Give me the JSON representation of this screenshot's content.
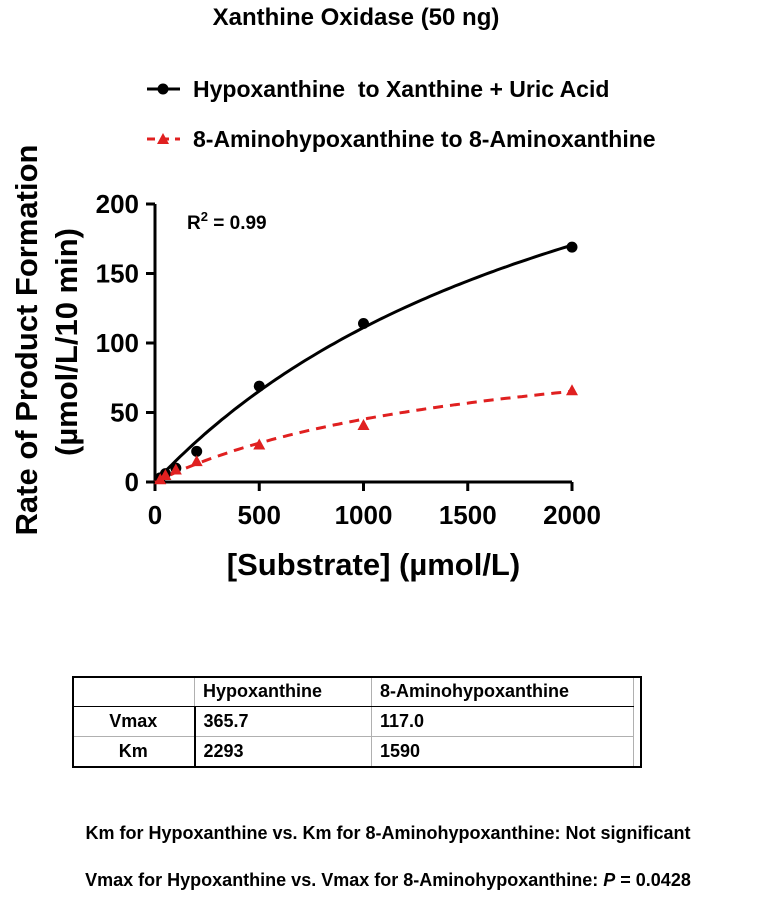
{
  "chart_data": {
    "type": "scatter",
    "title": "Xanthine Oxidase (50 ng)",
    "xlabel": "[Substrate] (µmol/L)",
    "ylabel_line1": "Rate of Product Formation",
    "ylabel_line2": "(µmol/L/10 min)",
    "xlim": [
      0,
      2000
    ],
    "ylim": [
      0,
      200
    ],
    "xticks": [
      0,
      500,
      1000,
      1500,
      2000
    ],
    "yticks": [
      0,
      50,
      100,
      150,
      200
    ],
    "annotation": {
      "base": "R",
      "sup": "2",
      "rest": " = 0.99"
    },
    "legend_position": "top",
    "series": [
      {
        "name": "Hypoxanthine  to Xanthine + Uric Acid",
        "color": "#000000",
        "marker": "circle",
        "line": "solid",
        "x": [
          25,
          50,
          100,
          200,
          500,
          1000,
          2000
        ],
        "y": [
          3,
          6,
          10,
          22,
          69,
          114,
          169
        ],
        "fit": {
          "model": "michaelis-menten",
          "vmax": 365.7,
          "km": 2293
        }
      },
      {
        "name": "8-Aminohypoxanthine to 8-Aminoxanthine",
        "color": "#e02020",
        "marker": "triangle",
        "line": "dashed",
        "x": [
          25,
          50,
          100,
          200,
          500,
          1000,
          2000
        ],
        "y": [
          2,
          5,
          9,
          15,
          27,
          41,
          66
        ],
        "fit": {
          "model": "michaelis-menten",
          "vmax": 117.0,
          "km": 1590
        }
      }
    ]
  },
  "table": {
    "headers": [
      "",
      "Hypoxanthine",
      "8-Aminohypoxanthine"
    ],
    "rows": [
      {
        "label": "Vmax",
        "hypo": "365.7",
        "amino": "117.0"
      },
      {
        "label": "Km",
        "hypo": "2293",
        "amino": "1590"
      }
    ]
  },
  "notes": {
    "km_comparison": "Km for Hypoxanthine vs. Km for 8-Aminohypoxanthine: Not significant",
    "vmax_prefix": "Vmax for Hypoxanthine vs. Vmax for 8-Aminohypoxanthine: ",
    "p_label": "P",
    "p_value": " = 0.0428"
  }
}
